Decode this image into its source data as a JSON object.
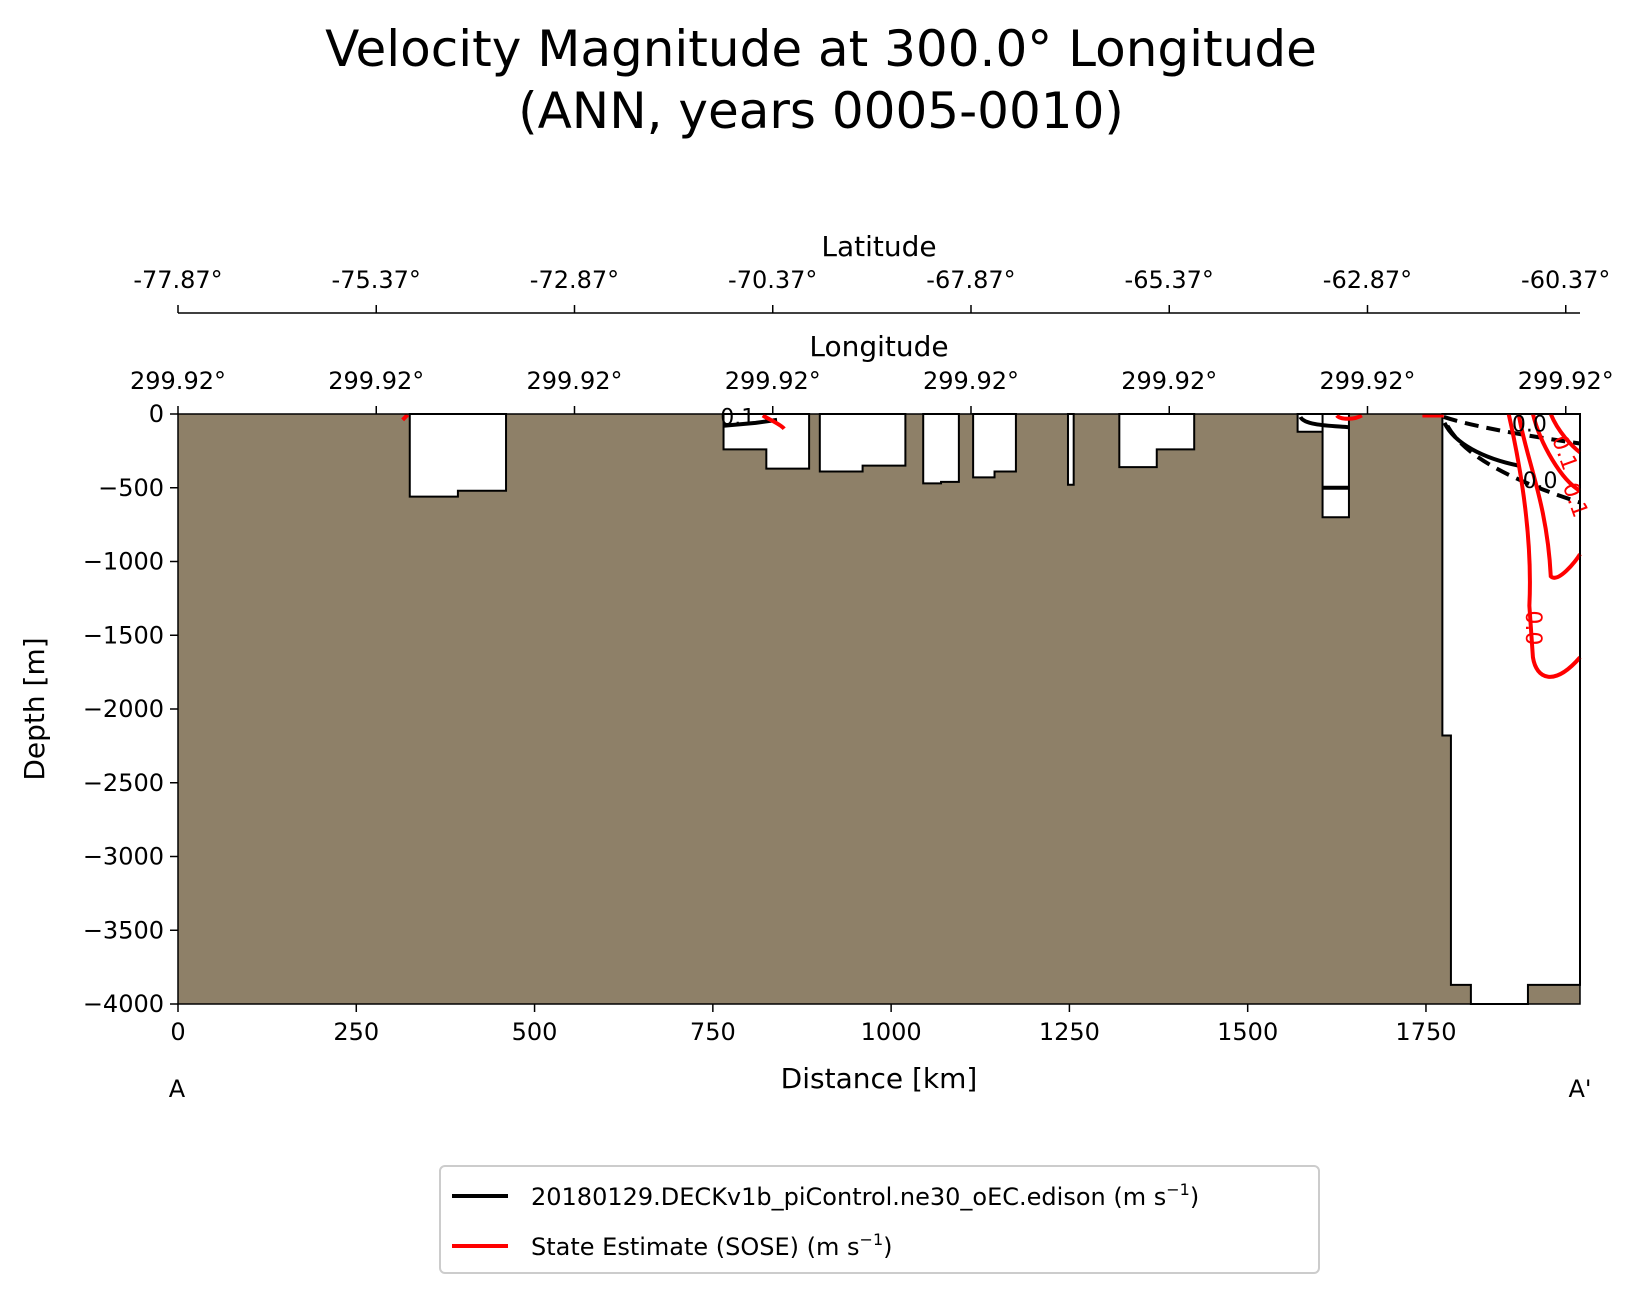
{
  "chart_data": {
    "type": "contour",
    "title": [
      "Velocity Magnitude at 300.0° Longitude",
      "(ANN, years 0005-0010)"
    ],
    "xlabel": "Distance [km]",
    "ylabel": "Depth [m]",
    "xlim": [
      0,
      1966
    ],
    "ylim": [
      -4000,
      0
    ],
    "x_ticks": [
      0,
      250,
      500,
      750,
      1000,
      1250,
      1500,
      1750
    ],
    "x_tick_labels": [
      "0",
      "250",
      "500",
      "750",
      "1000",
      "1250",
      "1500",
      "1750"
    ],
    "y_ticks": [
      0,
      -500,
      -1000,
      -1500,
      -2000,
      -2500,
      -3000,
      -3500,
      -4000
    ],
    "y_tick_labels": [
      "0",
      "−500",
      "−1000",
      "−1500",
      "−2000",
      "−2500",
      "−3000",
      "−3500",
      "−4000"
    ],
    "section_start_label": "A",
    "section_end_label": "A'",
    "top_axes": [
      {
        "label": "Latitude",
        "tick_distances_km": [
          0,
          278,
          556,
          834,
          1112,
          1390,
          1668,
          1946
        ],
        "tick_labels": [
          "-77.87°",
          "-75.37°",
          "-72.87°",
          "-70.37°",
          "-67.87°",
          "-65.37°",
          "-62.87°",
          "-60.37°"
        ]
      },
      {
        "label": "Longitude",
        "tick_distances_km": [
          0,
          278,
          556,
          834,
          1112,
          1390,
          1668,
          1946
        ],
        "tick_labels": [
          "299.92°",
          "299.92°",
          "299.92°",
          "299.92°",
          "299.92°",
          "299.92°",
          "299.92°",
          "299.92°"
        ]
      }
    ],
    "land_color": "#8e8068",
    "water_boxes": [
      {
        "x0": 325,
        "x1": 460,
        "depth_left": -560,
        "depth_right": -520
      },
      {
        "x0": 765,
        "x1": 885,
        "depth_left": -240,
        "depth_right": -370
      },
      {
        "x0": 900,
        "x1": 1020,
        "depth_left": -390,
        "depth_right": -350
      },
      {
        "x0": 1045,
        "x1": 1095,
        "depth_left": -470,
        "depth_right": -460
      },
      {
        "x0": 1115,
        "x1": 1175,
        "depth_left": -430,
        "depth_right": -390
      },
      {
        "x0": 1248,
        "x1": 1256,
        "depth_left": -480,
        "depth_right": -480
      },
      {
        "x0": 1320,
        "x1": 1425,
        "depth_left": -360,
        "depth_right": -240
      },
      {
        "x0": 1570,
        "x1": 1640,
        "depth_left": -120,
        "depth_right": -120
      },
      {
        "x0": 1605,
        "x1": 1642,
        "depth_left": -700,
        "depth_right": -700
      }
    ],
    "open_ocean": {
      "x0": 1773,
      "x1": 1966,
      "shelf_break_depth": -2180,
      "floor_depth": -3870,
      "deep_trough": {
        "x0": 1813,
        "x1": 1893,
        "depth": -4000
      }
    },
    "series": [
      {
        "name": "20180129.DECKv1b_piControl.ne30_oEC.edison (m s⁻¹)",
        "color": "#000000",
        "contour_labels": [
          "0.0",
          "0.1",
          "0.0"
        ]
      },
      {
        "name": "State Estimate (SOSE) (m s⁻¹)",
        "color": "#ff0000",
        "contour_labels": [
          "0.1",
          "0.1",
          "0.0"
        ]
      }
    ]
  },
  "legend": {
    "placement": "bottom-center",
    "entries": [
      {
        "label": "20180129.DECKv1b_piControl.ne30_oEC.edison (m s",
        "sup": "−1",
        "suffix": ")",
        "color": "#000000"
      },
      {
        "label": "State Estimate (SOSE) (m s",
        "sup": "−1",
        "suffix": ")",
        "color": "#ff0000"
      }
    ]
  }
}
